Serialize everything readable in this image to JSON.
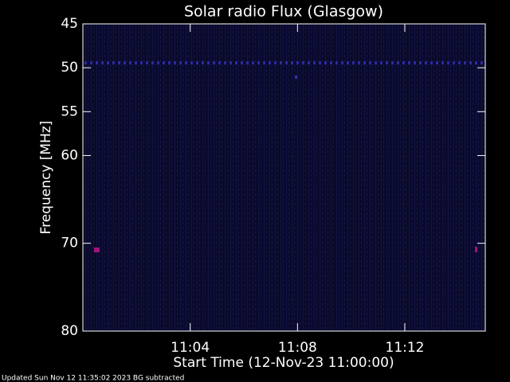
{
  "chart_data": {
    "type": "spectrogram",
    "title": "Solar radio Flux (Glasgow)",
    "x_label": "Start Time (12-Nov-23 11:00:00)",
    "y_label": "Frequency [MHz]",
    "xlim": [
      0,
      15
    ],
    "xticks": [
      {
        "value": 4,
        "label": "11:04"
      },
      {
        "value": 8,
        "label": "11:08"
      },
      {
        "value": 12,
        "label": "11:12"
      }
    ],
    "ylim": [
      45,
      80
    ],
    "yticks": [
      45,
      50,
      55,
      60,
      70,
      80
    ],
    "y_inverted": true,
    "background_color": "#0a0a2a",
    "footer": "Updated Sun Nov 12 11:35:02 2023   BG subtracted"
  }
}
